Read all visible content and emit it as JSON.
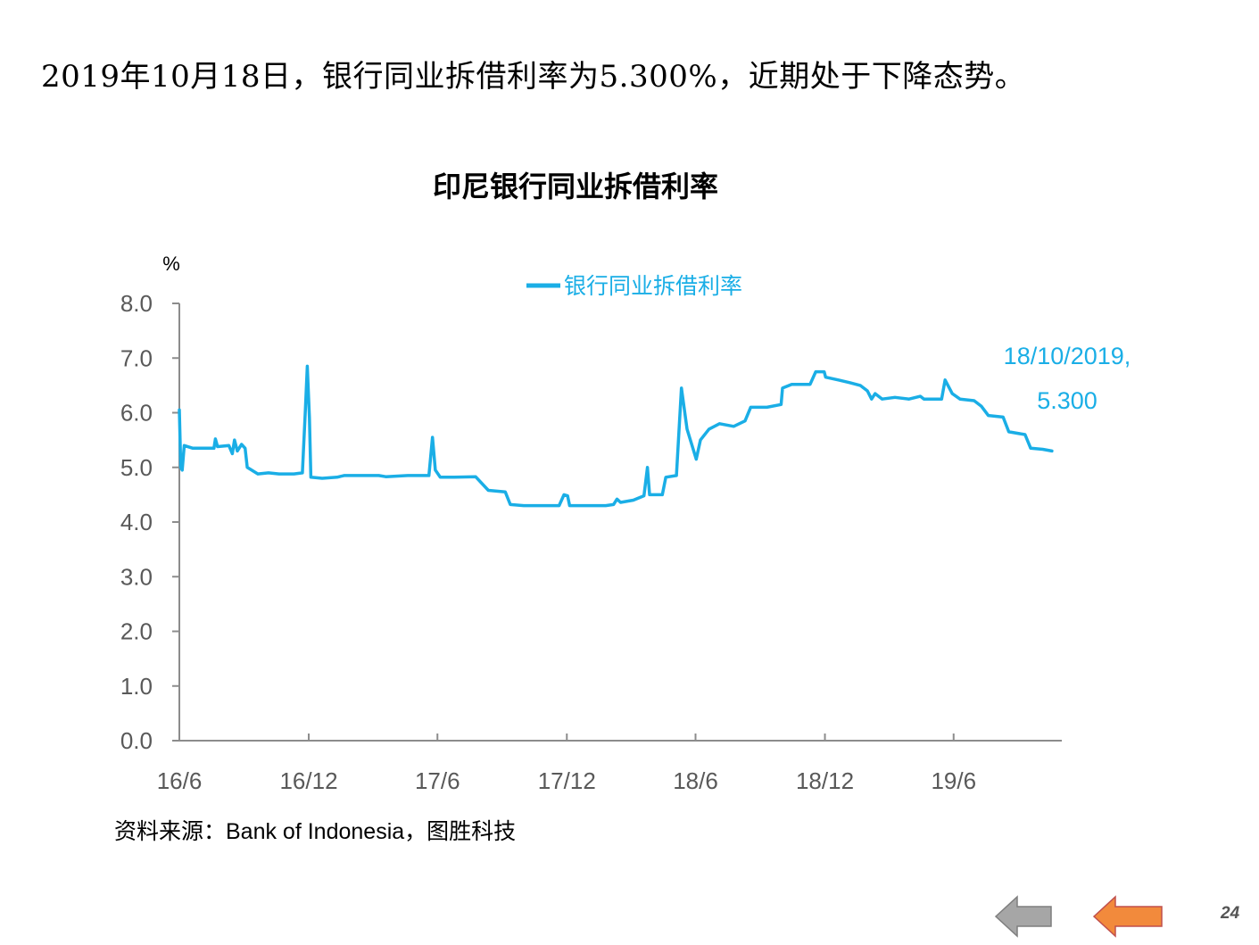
{
  "headline": "2019年10月18日，银行同业拆借利率为5.300%，近期处于下降态势。",
  "source": "资料来源：Bank of Indonesia，图胜科技",
  "page_number": "24",
  "nav": {
    "prev_icon": "left-arrow-gray-icon",
    "next_icon": "left-arrow-orange-icon"
  },
  "colors": {
    "series": "#1aaee6",
    "axis": "#8c8c8c",
    "prev_arrow": "#a6a6a6",
    "next_arrow": "#f28a3c"
  },
  "chart_data": {
    "type": "line",
    "title": "印尼银行同业拆借利率",
    "ylabel": "%",
    "ylim": [
      0,
      8
    ],
    "yticks": [
      "0.0",
      "1.0",
      "2.0",
      "3.0",
      "4.0",
      "5.0",
      "6.0",
      "7.0",
      "8.0"
    ],
    "xticks": [
      "16/6",
      "16/12",
      "17/6",
      "17/12",
      "18/6",
      "18/12",
      "19/6"
    ],
    "xlim": [
      "2016-06-01",
      "2019-11-01"
    ],
    "legend_position": "top-center",
    "grid": false,
    "annotation": {
      "line1": "18/10/2019,",
      "line2": "5.300",
      "x": "2019-10-18",
      "y": 5.3
    },
    "series": [
      {
        "name": "银行同业拆借利率",
        "points": [
          [
            "2016-06-01",
            6.05
          ],
          [
            "2016-06-03",
            5.0
          ],
          [
            "2016-06-05",
            4.95
          ],
          [
            "2016-06-08",
            5.4
          ],
          [
            "2016-06-20",
            5.35
          ],
          [
            "2016-07-05",
            5.35
          ],
          [
            "2016-07-20",
            5.35
          ],
          [
            "2016-07-22",
            5.52
          ],
          [
            "2016-07-25",
            5.38
          ],
          [
            "2016-08-10",
            5.4
          ],
          [
            "2016-08-15",
            5.25
          ],
          [
            "2016-08-18",
            5.5
          ],
          [
            "2016-08-22",
            5.3
          ],
          [
            "2016-08-28",
            5.42
          ],
          [
            "2016-09-02",
            5.35
          ],
          [
            "2016-09-05",
            5.0
          ],
          [
            "2016-09-20",
            4.88
          ],
          [
            "2016-10-05",
            4.9
          ],
          [
            "2016-10-20",
            4.88
          ],
          [
            "2016-11-10",
            4.88
          ],
          [
            "2016-11-22",
            4.9
          ],
          [
            "2016-11-26",
            6.0
          ],
          [
            "2016-11-29",
            6.85
          ],
          [
            "2016-12-02",
            5.9
          ],
          [
            "2016-12-04",
            4.82
          ],
          [
            "2016-12-20",
            4.8
          ],
          [
            "2017-01-10",
            4.82
          ],
          [
            "2017-01-20",
            4.85
          ],
          [
            "2017-02-15",
            4.85
          ],
          [
            "2017-03-10",
            4.85
          ],
          [
            "2017-03-20",
            4.83
          ],
          [
            "2017-04-20",
            4.85
          ],
          [
            "2017-05-20",
            4.85
          ],
          [
            "2017-05-25",
            5.55
          ],
          [
            "2017-05-29",
            4.95
          ],
          [
            "2017-06-05",
            4.82
          ],
          [
            "2017-06-25",
            4.82
          ],
          [
            "2017-07-25",
            4.83
          ],
          [
            "2017-08-12",
            4.58
          ],
          [
            "2017-09-05",
            4.55
          ],
          [
            "2017-09-12",
            4.32
          ],
          [
            "2017-10-01",
            4.3
          ],
          [
            "2017-10-25",
            4.3
          ],
          [
            "2017-11-20",
            4.3
          ],
          [
            "2017-11-27",
            4.5
          ],
          [
            "2017-12-02",
            4.48
          ],
          [
            "2017-12-05",
            4.3
          ],
          [
            "2017-12-20",
            4.3
          ],
          [
            "2018-01-25",
            4.3
          ],
          [
            "2018-02-05",
            4.32
          ],
          [
            "2018-02-10",
            4.42
          ],
          [
            "2018-02-15",
            4.36
          ],
          [
            "2018-03-05",
            4.4
          ],
          [
            "2018-03-20",
            4.48
          ],
          [
            "2018-03-25",
            5.0
          ],
          [
            "2018-03-28",
            4.5
          ],
          [
            "2018-04-15",
            4.5
          ],
          [
            "2018-04-20",
            4.82
          ],
          [
            "2018-05-05",
            4.85
          ],
          [
            "2018-05-12",
            6.45
          ],
          [
            "2018-05-20",
            5.7
          ],
          [
            "2018-06-02",
            5.15
          ],
          [
            "2018-06-08",
            5.5
          ],
          [
            "2018-06-20",
            5.7
          ],
          [
            "2018-07-05",
            5.8
          ],
          [
            "2018-07-25",
            5.75
          ],
          [
            "2018-08-10",
            5.85
          ],
          [
            "2018-08-18",
            6.1
          ],
          [
            "2018-09-10",
            6.1
          ],
          [
            "2018-09-30",
            6.15
          ],
          [
            "2018-10-02",
            6.45
          ],
          [
            "2018-10-15",
            6.52
          ],
          [
            "2018-11-10",
            6.52
          ],
          [
            "2018-11-18",
            6.75
          ],
          [
            "2018-11-30",
            6.75
          ],
          [
            "2018-12-02",
            6.65
          ],
          [
            "2018-12-20",
            6.6
          ],
          [
            "2019-01-05",
            6.55
          ],
          [
            "2019-01-20",
            6.5
          ],
          [
            "2019-01-30",
            6.4
          ],
          [
            "2019-02-05",
            6.25
          ],
          [
            "2019-02-10",
            6.35
          ],
          [
            "2019-02-20",
            6.25
          ],
          [
            "2019-03-10",
            6.28
          ],
          [
            "2019-03-30",
            6.25
          ],
          [
            "2019-04-15",
            6.3
          ],
          [
            "2019-04-20",
            6.25
          ],
          [
            "2019-05-15",
            6.25
          ],
          [
            "2019-05-20",
            6.6
          ],
          [
            "2019-05-30",
            6.35
          ],
          [
            "2019-06-10",
            6.25
          ],
          [
            "2019-06-30",
            6.22
          ],
          [
            "2019-07-10",
            6.12
          ],
          [
            "2019-07-20",
            5.95
          ],
          [
            "2019-08-10",
            5.92
          ],
          [
            "2019-08-18",
            5.65
          ],
          [
            "2019-09-10",
            5.6
          ],
          [
            "2019-09-18",
            5.35
          ],
          [
            "2019-10-05",
            5.33
          ],
          [
            "2019-10-18",
            5.3
          ]
        ]
      }
    ]
  }
}
